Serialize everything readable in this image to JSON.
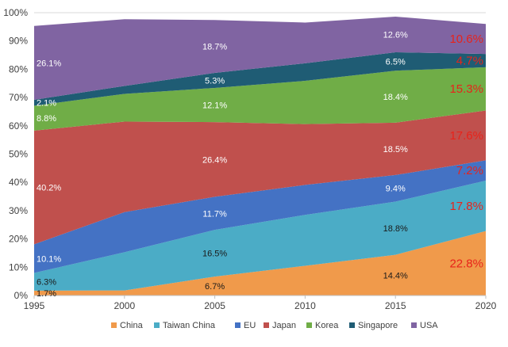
{
  "chart_data": {
    "type": "area",
    "stacked": true,
    "x": [
      1995,
      2000,
      2005,
      2010,
      2015,
      2020
    ],
    "xlim": [
      1995,
      2020
    ],
    "ylim": [
      0,
      100
    ],
    "y_ticks": [
      "0%",
      "10%",
      "20%",
      "30%",
      "40%",
      "50%",
      "60%",
      "70%",
      "80%",
      "90%",
      "100%"
    ],
    "x_ticks": [
      "1995",
      "2000",
      "2005",
      "2010",
      "2015",
      "2020"
    ],
    "grid": true,
    "legend_position": "bottom",
    "series": [
      {
        "name": "China",
        "color": "#F09A4B",
        "values": [
          1.7,
          1.8,
          6.7,
          10.5,
          14.4,
          22.8
        ]
      },
      {
        "name": "Taiwan  China",
        "color": "#4BACC6",
        "values": [
          6.3,
          13.5,
          16.5,
          18,
          18.8,
          17.8
        ]
      },
      {
        "name": "EU",
        "color": "#4472C4",
        "values": [
          10.1,
          14.2,
          11.7,
          10.6,
          9.4,
          7.2
        ]
      },
      {
        "name": "Japan",
        "color": "#C0504D",
        "values": [
          40.2,
          32,
          26.4,
          21.5,
          18.5,
          17.6
        ]
      },
      {
        "name": "Korea",
        "color": "#70AD47",
        "values": [
          8.8,
          9.8,
          12.1,
          15.3,
          18.4,
          15.3
        ]
      },
      {
        "name": "Singapore",
        "color": "#1F5C74",
        "values": [
          2.1,
          2.8,
          5.3,
          6.2,
          6.5,
          4.7
        ]
      },
      {
        "name": "USA",
        "color": "#8064A2",
        "values": [
          26.1,
          23.6,
          18.7,
          14.4,
          12.6,
          10.6
        ]
      }
    ],
    "labels": [
      {
        "series": 0,
        "xi": 0,
        "text": "1.7%",
        "style": "dark"
      },
      {
        "series": 0,
        "xi": 2,
        "text": "6.7%",
        "style": "dark"
      },
      {
        "series": 0,
        "xi": 4,
        "text": "14.4%",
        "style": "dark"
      },
      {
        "series": 0,
        "xi": 5,
        "text": "22.8%",
        "style": "red"
      },
      {
        "series": 1,
        "xi": 0,
        "text": "6.3%",
        "style": "dark"
      },
      {
        "series": 1,
        "xi": 2,
        "text": "16.5%",
        "style": "dark"
      },
      {
        "series": 1,
        "xi": 4,
        "text": "18.8%",
        "style": "dark"
      },
      {
        "series": 1,
        "xi": 5,
        "text": "17.8%",
        "style": "red"
      },
      {
        "series": 2,
        "xi": 0,
        "text": "10.1%",
        "style": "light"
      },
      {
        "series": 2,
        "xi": 2,
        "text": "11.7%",
        "style": "light"
      },
      {
        "series": 2,
        "xi": 4,
        "text": "9.4%",
        "style": "light"
      },
      {
        "series": 2,
        "xi": 5,
        "text": "7.2%",
        "style": "red"
      },
      {
        "series": 3,
        "xi": 0,
        "text": "40.2%",
        "style": "light"
      },
      {
        "series": 3,
        "xi": 2,
        "text": "26.4%",
        "style": "light"
      },
      {
        "series": 3,
        "xi": 4,
        "text": "18.5%",
        "style": "light"
      },
      {
        "series": 3,
        "xi": 5,
        "text": "17.6%",
        "style": "red"
      },
      {
        "series": 4,
        "xi": 0,
        "text": "8.8%",
        "style": "light"
      },
      {
        "series": 4,
        "xi": 2,
        "text": "12.1%",
        "style": "light"
      },
      {
        "series": 4,
        "xi": 4,
        "text": "18.4%",
        "style": "light"
      },
      {
        "series": 4,
        "xi": 5,
        "text": "15.3%",
        "style": "red"
      },
      {
        "series": 5,
        "xi": 0,
        "text": "2.1%",
        "style": "light"
      },
      {
        "series": 5,
        "xi": 2,
        "text": "5.3%",
        "style": "light"
      },
      {
        "series": 5,
        "xi": 4,
        "text": "6.5%",
        "style": "light"
      },
      {
        "series": 5,
        "xi": 5,
        "text": "4.7%",
        "style": "red"
      },
      {
        "series": 6,
        "xi": 0,
        "text": "26.1%",
        "style": "light"
      },
      {
        "series": 6,
        "xi": 2,
        "text": "18.7%",
        "style": "light"
      },
      {
        "series": 6,
        "xi": 4,
        "text": "12.6%",
        "style": "light"
      },
      {
        "series": 6,
        "xi": 5,
        "text": "10.6%",
        "style": "red"
      }
    ],
    "label_colors": {
      "dark": "#1a1a1a",
      "light": "#ffffff",
      "red": "#e8231a"
    }
  }
}
